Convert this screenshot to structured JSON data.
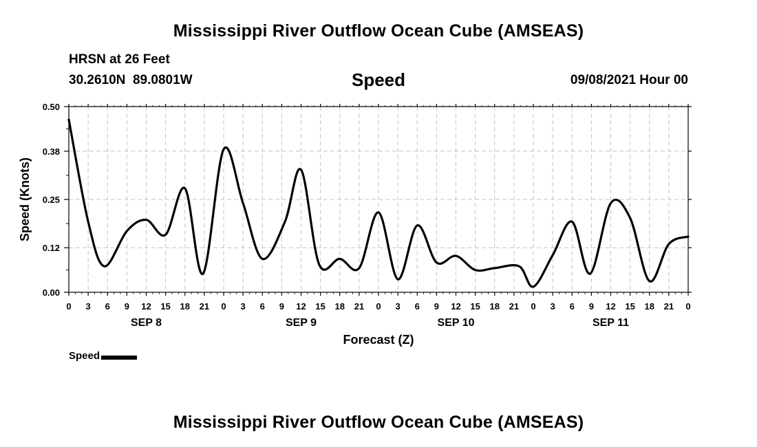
{
  "header": {
    "title": "Mississippi River Outflow Ocean Cube (AMSEAS)",
    "location_name": "HRSN at 26 Feet",
    "coordinates": "30.2610N  89.0801W",
    "chart_title": "Speed",
    "date_hour": "09/08/2021 Hour 00"
  },
  "footer": {
    "title": "Mississippi River Outflow Ocean Cube (AMSEAS)"
  },
  "legend": {
    "label": "Speed",
    "color": "#000000"
  },
  "chart_data": {
    "type": "line",
    "title": "Speed",
    "xlabel": "Forecast (Z)",
    "ylabel": "Speed (Knots)",
    "xlim": [
      0,
      96
    ],
    "ylim": [
      0,
      0.5
    ],
    "grid": true,
    "grid_style": "dashed",
    "yticks": [
      0.0,
      0.12,
      0.25,
      0.38,
      0.5
    ],
    "ytick_labels": [
      "0.00",
      "0.12",
      "0.25",
      "0.38",
      "0.50"
    ],
    "xtick_hours": [
      0,
      3,
      6,
      9,
      12,
      15,
      18,
      21,
      24,
      27,
      30,
      33,
      36,
      39,
      42,
      45,
      48,
      51,
      54,
      57,
      60,
      63,
      66,
      69,
      72,
      75,
      78,
      81,
      84,
      87,
      90,
      93,
      96
    ],
    "xtick_labels": [
      "0",
      "3",
      "6",
      "9",
      "12",
      "15",
      "18",
      "21",
      "0",
      "3",
      "6",
      "9",
      "12",
      "15",
      "18",
      "21",
      "0",
      "3",
      "6",
      "9",
      "12",
      "15",
      "18",
      "21",
      "0",
      "3",
      "6",
      "9",
      "12",
      "15",
      "18",
      "21",
      "0"
    ],
    "day_labels": [
      {
        "label": "SEP 8",
        "center_hour": 12
      },
      {
        "label": "SEP 9",
        "center_hour": 36
      },
      {
        "label": "SEP 10",
        "center_hour": 60
      },
      {
        "label": "SEP 11",
        "center_hour": 84
      }
    ],
    "series": [
      {
        "name": "Speed",
        "color": "#000000",
        "x": [
          0,
          3,
          5.5,
          9,
          12,
          15,
          18,
          20.8,
          24,
          27,
          30,
          33.5,
          36,
          38.8,
          42,
          45,
          48,
          51,
          54,
          57,
          60,
          63,
          66,
          69.8,
          72,
          75,
          78,
          80.8,
          84,
          87,
          90,
          93,
          96
        ],
        "y": [
          0.465,
          0.19,
          0.07,
          0.165,
          0.195,
          0.155,
          0.28,
          0.05,
          0.385,
          0.24,
          0.09,
          0.19,
          0.33,
          0.075,
          0.09,
          0.065,
          0.215,
          0.035,
          0.18,
          0.08,
          0.098,
          0.06,
          0.065,
          0.07,
          0.015,
          0.1,
          0.19,
          0.05,
          0.24,
          0.2,
          0.03,
          0.13,
          0.15
        ]
      }
    ]
  }
}
